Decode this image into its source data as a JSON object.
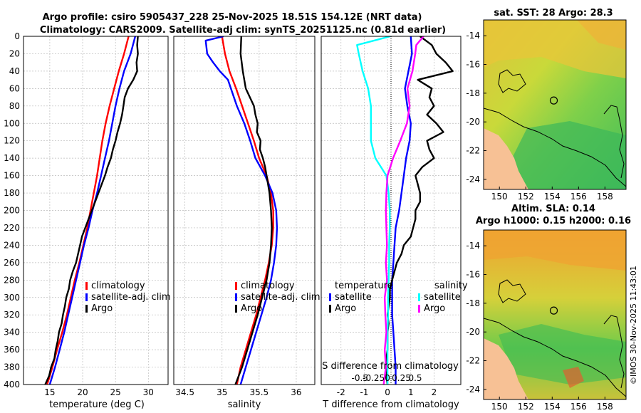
{
  "title": {
    "line1": "Argo profile: csiro 5905437_228 25-Nov-2025 18.51S 154.12E (NRT data)",
    "line2": "Climatology: CARS2009. Satellite-adj clim: synTS_20251125.nc (0.81d earlier)"
  },
  "colors": {
    "climatology": "#ff0000",
    "satellite": "#0000ff",
    "argo": "#000000",
    "s_satellite": "#00ffff",
    "s_argo": "#ff00ff",
    "land": "#f7c195"
  },
  "depth_ticks": [
    0,
    20,
    40,
    60,
    80,
    100,
    120,
    140,
    160,
    180,
    200,
    220,
    240,
    260,
    280,
    300,
    320,
    340,
    360,
    380,
    400
  ],
  "chart_data": [
    {
      "type": "line",
      "id": "temperature",
      "xlabel": "temperature (deg C)",
      "xlim": [
        11,
        33
      ],
      "xticks": [
        15,
        20,
        25,
        30
      ],
      "ylim": [
        0,
        400
      ],
      "yreversed": true,
      "legend": [
        "climatology",
        "satellite-adj. clim",
        "Argo"
      ],
      "series": [
        {
          "name": "climatology",
          "color": "#ff0000",
          "depth": [
            0,
            20,
            40,
            60,
            80,
            100,
            120,
            140,
            160,
            180,
            200,
            220,
            240,
            260,
            280,
            300,
            320,
            340,
            360,
            380,
            400
          ],
          "values": [
            27,
            26.3,
            25.5,
            24.8,
            24.1,
            23.5,
            23,
            22.6,
            22.2,
            21.7,
            21.2,
            20.7,
            20.1,
            19.5,
            18.8,
            18.2,
            17.6,
            16.9,
            16.1,
            15.4,
            14.6
          ]
        },
        {
          "name": "satellite-adj. clim",
          "color": "#0000ff",
          "depth": [
            0,
            20,
            40,
            60,
            80,
            100,
            120,
            140,
            160,
            180,
            200,
            220,
            240,
            260,
            280,
            300,
            320,
            340,
            360,
            380,
            400
          ],
          "values": [
            28,
            27.3,
            26.3,
            25.6,
            25,
            24.5,
            24,
            23.4,
            22.8,
            22.2,
            21.5,
            20.9,
            20.2,
            19.6,
            19,
            18.4,
            17.8,
            17.2,
            16.5,
            15.8,
            15
          ]
        },
        {
          "name": "Argo",
          "color": "#000000",
          "depth": [
            0,
            10,
            20,
            30,
            40,
            50,
            60,
            70,
            80,
            90,
            100,
            110,
            120,
            130,
            140,
            150,
            160,
            170,
            180,
            190,
            200,
            210,
            220,
            230,
            240,
            250,
            260,
            270,
            280,
            290,
            300,
            310,
            320,
            330,
            340,
            350,
            360,
            370,
            380,
            390,
            400
          ],
          "values": [
            28.4,
            28.3,
            28.4,
            28.2,
            28.3,
            27.7,
            26.9,
            26.4,
            26.2,
            26,
            25.7,
            25.3,
            25,
            24.6,
            24.3,
            23.8,
            23.4,
            22.9,
            22.4,
            21.9,
            21.4,
            20.9,
            20.4,
            19.9,
            19.6,
            19.3,
            19,
            18.5,
            18.1,
            17.9,
            17.5,
            17.3,
            17,
            16.8,
            16.4,
            16.2,
            15.9,
            15.7,
            15.2,
            14.9,
            14.3
          ]
        }
      ]
    },
    {
      "type": "line",
      "id": "salinity",
      "xlabel": "salinity",
      "xlim": [
        34.35,
        36.25
      ],
      "xticks": [
        34.5,
        35,
        35.5,
        36
      ],
      "ylim": [
        0,
        400
      ],
      "yreversed": true,
      "legend": [
        "climatology",
        "satellite-adj. clim",
        "Argo"
      ],
      "series": [
        {
          "name": "climatology",
          "color": "#ff0000",
          "depth": [
            0,
            20,
            40,
            60,
            80,
            100,
            120,
            140,
            160,
            180,
            200,
            220,
            240,
            260,
            280,
            300,
            320,
            340,
            360,
            380,
            400
          ],
          "values": [
            35,
            35.04,
            35.1,
            35.19,
            35.27,
            35.35,
            35.43,
            35.5,
            35.6,
            35.66,
            35.69,
            35.69,
            35.67,
            35.63,
            35.58,
            35.52,
            35.46,
            35.39,
            35.32,
            35.25,
            35.2
          ]
        },
        {
          "name": "satellite-adj. clim",
          "color": "#0000ff",
          "depth": [
            0,
            5,
            20,
            30,
            40,
            50,
            60,
            80,
            100,
            120,
            140,
            160,
            180,
            200,
            220,
            240,
            260,
            280,
            300,
            320,
            340,
            360,
            380,
            400
          ],
          "values": [
            35.02,
            34.78,
            34.8,
            34.88,
            34.97,
            35.08,
            35.12,
            35.2,
            35.3,
            35.38,
            35.45,
            35.58,
            35.68,
            35.73,
            35.74,
            35.73,
            35.7,
            35.66,
            35.6,
            35.53,
            35.46,
            35.39,
            35.32,
            35.25
          ]
        },
        {
          "name": "Argo",
          "color": "#000000",
          "depth": [
            0,
            20,
            40,
            60,
            80,
            90,
            100,
            110,
            120,
            130,
            140,
            150,
            160,
            180,
            200,
            220,
            240,
            260,
            280,
            300,
            320,
            340,
            360,
            380,
            400
          ],
          "values": [
            35.26,
            35.25,
            35.28,
            35.32,
            35.43,
            35.45,
            35.48,
            35.47,
            35.52,
            35.51,
            35.55,
            35.58,
            35.6,
            35.64,
            35.66,
            35.67,
            35.66,
            35.64,
            35.6,
            35.54,
            35.48,
            35.41,
            35.34,
            35.27,
            35.18
          ]
        }
      ]
    },
    {
      "type": "line",
      "id": "difference",
      "xlabel": "T difference from climatology",
      "xlabel_top": "S difference from climatology",
      "xlim": [
        -2.85,
        3.15
      ],
      "xticks": [
        -2,
        -1,
        0,
        1,
        2
      ],
      "xticks_s": [
        -0.5,
        -0.25,
        0,
        0.25,
        0.5
      ],
      "s_scale": 0.42,
      "ylim": [
        0,
        400
      ],
      "yreversed": true,
      "legend_t": [
        "temperature",
        "satellite",
        "Argo"
      ],
      "legend_s": [
        "salinity",
        "satellite",
        "Argo"
      ],
      "series": [
        {
          "name": "temperature satellite",
          "color": "#0000ff",
          "depth": [
            0,
            20,
            40,
            60,
            80,
            100,
            120,
            140,
            160,
            180,
            200,
            220,
            240,
            260,
            280,
            300,
            320,
            340,
            360,
            380,
            400
          ],
          "values": [
            1,
            1.05,
            0.9,
            0.75,
            0.85,
            1,
            0.95,
            0.8,
            0.7,
            0.6,
            0.5,
            0.35,
            0.3,
            0.25,
            0.2,
            0.2,
            0.2,
            0.25,
            0.3,
            0.35,
            0.35
          ]
        },
        {
          "name": "temperature Argo",
          "color": "#000000",
          "depth": [
            0,
            10,
            20,
            30,
            40,
            50,
            60,
            70,
            80,
            90,
            100,
            110,
            120,
            130,
            140,
            150,
            160,
            170,
            180,
            190,
            200,
            210,
            220,
            230,
            240,
            250,
            260,
            270,
            280,
            290,
            300,
            310,
            320,
            330,
            340,
            350,
            360,
            370,
            380,
            390,
            400
          ],
          "values": [
            1.4,
            1.9,
            2.1,
            2.5,
            2.8,
            1.3,
            1.9,
            1.8,
            2,
            1.7,
            2.1,
            2.4,
            1.7,
            1.8,
            2,
            1.5,
            1.2,
            1.3,
            1.4,
            1.4,
            1.2,
            1.2,
            1.1,
            1,
            0.7,
            0.6,
            0.4,
            0.3,
            0.2,
            0.1,
            0.1,
            0.05,
            0,
            0.05,
            0,
            0,
            0,
            -0.05,
            0,
            -0.05,
            0
          ]
        },
        {
          "name": "salinity satellite",
          "color": "#00ffff",
          "depth": [
            0,
            10,
            20,
            40,
            60,
            80,
            100,
            120,
            140,
            160,
            180,
            200,
            220,
            240,
            260,
            280,
            300,
            320,
            340,
            360,
            380,
            400
          ],
          "values": [
            0.05,
            -0.55,
            -0.52,
            -0.45,
            -0.35,
            -0.3,
            -0.3,
            -0.3,
            -0.22,
            -0.02,
            0.02,
            0.04,
            0.04,
            0.03,
            0.03,
            0.02,
            0.01,
            0.01,
            0,
            0,
            0,
            0
          ]
        },
        {
          "name": "salinity Argo",
          "color": "#ff00ff",
          "depth": [
            0,
            10,
            20,
            40,
            60,
            80,
            100,
            120,
            140,
            160,
            180,
            200,
            220,
            240,
            260,
            280,
            300,
            320,
            340,
            360,
            380,
            400
          ],
          "values": [
            0.65,
            0.52,
            0.5,
            0.45,
            0.36,
            0.4,
            0.35,
            0.23,
            0.1,
            0,
            -0.02,
            -0.03,
            -0.02,
            -0.01,
            -0.03,
            -0.01,
            -0.05,
            -0.04,
            -0.02,
            -0.05,
            -0.03,
            -0.07
          ]
        }
      ]
    }
  ],
  "map_sst": {
    "title": "sat. SST: 28 Argo: 28.3",
    "xticks": [
      150,
      152,
      154,
      156,
      158
    ],
    "yticks": [
      -14,
      -16,
      -18,
      -20,
      -22,
      -24
    ]
  },
  "map_sla": {
    "title_line1": "Altim. SLA: 0.14",
    "title_line2": "Argo h1000: 0.15 h2000: 0.16",
    "xticks": [
      150,
      152,
      154,
      156,
      158
    ],
    "yticks": [
      -14,
      -16,
      -18,
      -20,
      -22,
      -24
    ]
  },
  "map_extent": {
    "lon": [
      148.8,
      159.6
    ],
    "lat": [
      -24.7,
      -12.9
    ]
  },
  "argo_position": {
    "lon": 154.12,
    "lat": -18.51
  },
  "watermark": "©IMOS 30-Nov-2025 11:43:01"
}
